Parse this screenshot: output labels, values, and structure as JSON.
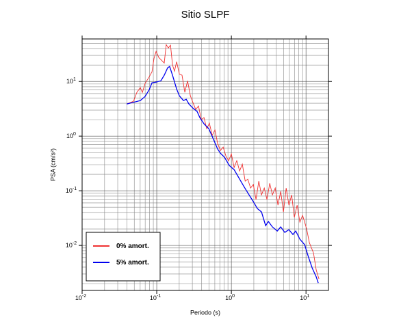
{
  "chart_data": {
    "type": "line",
    "title": "Sitio SLPF",
    "x_label": "Periodo (s)",
    "y_label": "PSA (cm/s²)",
    "log_x": true,
    "log_y": true,
    "grid": true,
    "legend_position": "lower left",
    "xlim": [
      0.01,
      20
    ],
    "ylim": [
      0.0015,
      60
    ],
    "xticks": [
      {
        "value": 0.01,
        "label": "10",
        "exponent": "-2"
      },
      {
        "value": 0.1,
        "label": "10",
        "exponent": "-1"
      },
      {
        "value": 1,
        "label": "10",
        "exponent": "0"
      },
      {
        "value": 10,
        "label": "10",
        "exponent": "1"
      }
    ],
    "yticks": [
      {
        "value": 0.01,
        "label": "10",
        "exponent": "-2"
      },
      {
        "value": 0.1,
        "label": "10",
        "exponent": "-1"
      },
      {
        "value": 1,
        "label": "10",
        "exponent": "0"
      },
      {
        "value": 10,
        "label": "10",
        "exponent": "1"
      }
    ],
    "series": [
      {
        "name": "0% amort.",
        "color": "#f03030",
        "x": [
          0.0395,
          0.0488,
          0.0542,
          0.0602,
          0.0642,
          0.0698,
          0.0793,
          0.0863,
          0.0919,
          0.0979,
          0.1066,
          0.116,
          0.126,
          0.134,
          0.143,
          0.153,
          0.1625,
          0.173,
          0.1846,
          0.201,
          0.218,
          0.238,
          0.259,
          0.282,
          0.306,
          0.333,
          0.363,
          0.395,
          0.43,
          0.467,
          0.508,
          0.553,
          0.602,
          0.655,
          0.713,
          0.776,
          0.845,
          0.919,
          1.0,
          1.088,
          1.18,
          1.29,
          1.4,
          1.53,
          1.66,
          1.81,
          1.97,
          2.14,
          2.33,
          2.53,
          2.76,
          3.0,
          3.27,
          3.55,
          3.87,
          4.21,
          4.58,
          4.98,
          5.42,
          5.9,
          6.42,
          6.98,
          7.6,
          8.27,
          9.0,
          10.2,
          11.1,
          12.6,
          13.7,
          14.9
        ],
        "values": [
          3.87,
          4.34,
          6.31,
          7.72,
          6.31,
          9.17,
          12.2,
          15.0,
          26.6,
          35.5,
          27.4,
          24.4,
          21.8,
          47.3,
          41.0,
          46.0,
          20.0,
          15.4,
          23.0,
          13.7,
          13.0,
          6.31,
          10.3,
          5.46,
          4.1,
          3.07,
          3.55,
          2.0,
          2.18,
          1.37,
          1.73,
          1.03,
          1.3,
          0.729,
          0.546,
          0.631,
          0.434,
          0.355,
          0.473,
          0.266,
          0.355,
          0.23,
          0.307,
          0.15,
          0.163,
          0.112,
          0.13,
          0.0688,
          0.15,
          0.0841,
          0.112,
          0.0688,
          0.137,
          0.0841,
          0.112,
          0.0546,
          0.0972,
          0.041,
          0.112,
          0.0546,
          0.0841,
          0.0326,
          0.0546,
          0.0266,
          0.0355,
          0.02,
          0.0112,
          0.00729,
          0.00355,
          0.00244
        ]
      },
      {
        "name": "5% amort.",
        "color": "#0000ee",
        "x": [
          0.0395,
          0.0602,
          0.0698,
          0.0793,
          0.0863,
          0.0979,
          0.1135,
          0.126,
          0.14,
          0.149,
          0.1625,
          0.1846,
          0.201,
          0.228,
          0.248,
          0.27,
          0.306,
          0.348,
          0.378,
          0.43,
          0.498,
          0.577,
          0.655,
          0.713,
          0.81,
          0.939,
          1.088,
          1.29,
          1.46,
          1.66,
          1.97,
          2.23,
          2.53,
          2.88,
          3.13,
          3.55,
          4.12,
          4.58,
          5.2,
          5.9,
          6.69,
          7.29,
          8.27,
          9.59,
          10.7,
          12.1,
          13.7,
          14.6
        ],
        "values": [
          3.87,
          4.47,
          5.31,
          7.08,
          9.44,
          9.72,
          10.3,
          13.0,
          17.8,
          18.8,
          13.0,
          7.29,
          5.46,
          4.47,
          4.73,
          3.87,
          3.25,
          2.82,
          2.18,
          1.68,
          1.37,
          0.866,
          0.579,
          0.487,
          0.41,
          0.29,
          0.244,
          0.163,
          0.122,
          0.0917,
          0.0631,
          0.0473,
          0.041,
          0.023,
          0.0274,
          0.0218,
          0.0183,
          0.0218,
          0.0173,
          0.0194,
          0.0158,
          0.0183,
          0.013,
          0.0103,
          0.00631,
          0.00387,
          0.00266,
          0.00205
        ]
      }
    ]
  }
}
